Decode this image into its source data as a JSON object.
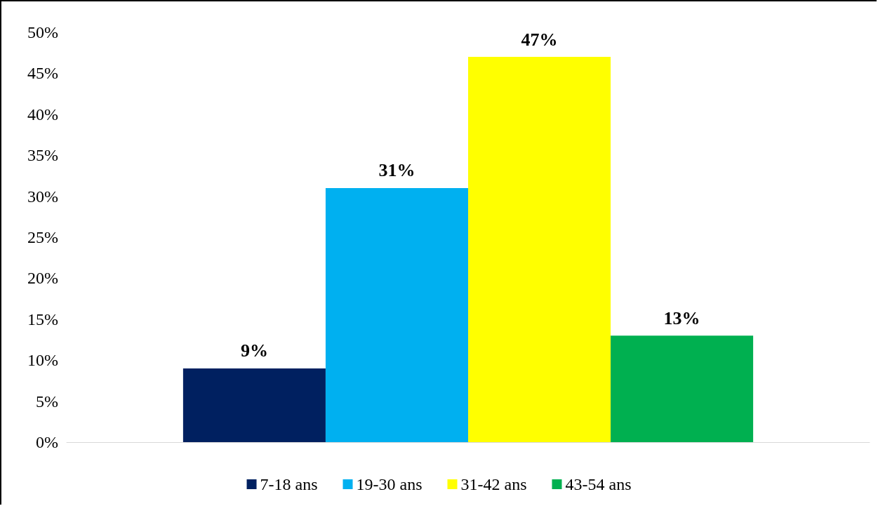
{
  "chart_data": {
    "type": "bar",
    "categories": [
      null
    ],
    "series": [
      {
        "name": "7-18 ans",
        "color": "#002060",
        "values": [
          9
        ],
        "value_labels": [
          "9%"
        ]
      },
      {
        "name": "19-30 ans",
        "color": "#00b0f0",
        "values": [
          31
        ],
        "value_labels": [
          "31%"
        ]
      },
      {
        "name": "31-42 ans",
        "color": "#ffff00",
        "values": [
          47
        ],
        "value_labels": [
          "47%"
        ]
      },
      {
        "name": "43-54 ans",
        "color": "#00b050",
        "values": [
          13
        ],
        "value_labels": [
          "13%"
        ]
      }
    ],
    "ylim": [
      0,
      50
    ],
    "yticks": [
      {
        "value": 0,
        "label": "0%"
      },
      {
        "value": 5,
        "label": "5%"
      },
      {
        "value": 10,
        "label": "10%"
      },
      {
        "value": 15,
        "label": "15%"
      },
      {
        "value": 20,
        "label": "20%"
      },
      {
        "value": 25,
        "label": "25%"
      },
      {
        "value": 30,
        "label": "30%"
      },
      {
        "value": 35,
        "label": "35%"
      },
      {
        "value": 40,
        "label": "40%"
      },
      {
        "value": 45,
        "label": "45%"
      },
      {
        "value": 50,
        "label": "50%"
      }
    ],
    "grid": false,
    "legend": "bottom"
  }
}
